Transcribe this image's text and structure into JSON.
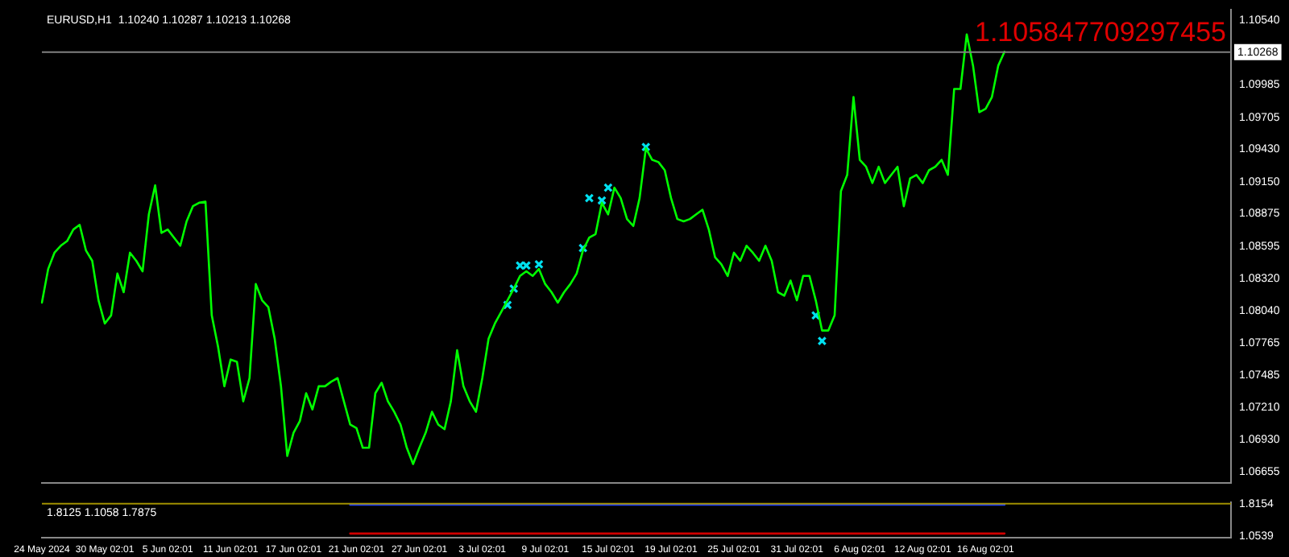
{
  "chart_data": [
    {
      "type": "line",
      "title": "EURUSD,H1  1.10240 1.10287 1.10213 1.10268",
      "annotations": [
        "1.105847709297455"
      ],
      "tick_labels": "y",
      "grid": false,
      "legend": false,
      "categories": [
        null,
        null,
        null,
        null,
        null,
        null,
        null,
        null,
        null,
        null,
        null,
        null,
        null,
        null,
        null,
        null,
        null,
        null,
        null,
        null,
        null,
        null,
        null,
        null,
        null,
        null,
        null,
        null,
        null,
        null,
        null,
        null,
        null,
        null,
        null,
        null,
        null,
        null,
        null,
        null,
        null,
        null,
        null,
        null,
        null,
        null,
        null,
        null,
        null,
        null,
        null,
        null,
        null,
        null,
        null,
        null,
        null,
        null,
        null,
        null,
        null,
        null,
        null,
        null,
        null,
        null,
        null,
        null,
        null,
        null,
        null,
        null,
        null,
        null,
        null,
        null,
        null,
        null,
        null,
        null,
        null,
        null,
        null,
        null,
        null,
        null,
        null,
        null,
        null,
        null,
        null,
        null,
        null,
        null,
        null,
        null,
        null,
        null,
        null,
        null,
        null,
        null,
        null,
        null,
        null,
        null,
        null,
        null,
        null,
        null,
        null,
        null,
        null,
        null,
        null,
        null,
        null,
        null,
        null,
        null,
        null,
        null,
        null,
        null,
        null,
        null,
        null,
        null,
        null,
        null,
        null,
        null,
        null,
        null,
        null,
        null,
        null,
        null,
        null,
        null,
        null,
        null,
        null,
        null,
        null,
        null,
        null,
        null,
        null,
        null,
        null,
        null,
        null,
        null,
        null,
        null,
        null,
        null,
        null,
        null,
        null,
        null,
        null,
        null,
        null,
        null,
        null,
        null,
        null,
        null,
        null,
        null,
        null,
        null,
        null,
        null,
        null,
        null,
        null,
        null,
        null,
        null,
        null,
        null,
        null,
        null,
        null,
        null,
        null,
        null
      ],
      "ylim": [
        1.0656,
        1.1063
      ],
      "yticks": [
        {
          "value": 1.1054,
          "label": "1.10540"
        },
        {
          "value": 1.09985,
          "label": "1.09985"
        },
        {
          "value": 1.09705,
          "label": "1.09705"
        },
        {
          "value": 1.0943,
          "label": "1.09430"
        },
        {
          "value": 1.0915,
          "label": "1.09150"
        },
        {
          "value": 1.08875,
          "label": "1.08875"
        },
        {
          "value": 1.08595,
          "label": "1.08595"
        },
        {
          "value": 1.0832,
          "label": "1.08320"
        },
        {
          "value": 1.0804,
          "label": "1.08040"
        },
        {
          "value": 1.07765,
          "label": "1.07765"
        },
        {
          "value": 1.07485,
          "label": "1.07485"
        },
        {
          "value": 1.0721,
          "label": "1.07210"
        },
        {
          "value": 1.0693,
          "label": "1.06930"
        },
        {
          "value": 1.06655,
          "label": "1.06655"
        }
      ],
      "ref_lines": [
        {
          "axis": "y",
          "value": 1.10268,
          "label": "1.10268",
          "color": "#808080"
        }
      ],
      "series": [
        {
          "type": "line",
          "color": "#00ff00",
          "values": [
            1.0811,
            1.084,
            1.0854,
            1.086,
            1.0864,
            1.0874,
            1.0878,
            1.0856,
            1.0847,
            1.0813,
            1.0793,
            1.08,
            1.0836,
            1.082,
            1.0854,
            1.0847,
            1.0838,
            1.0887,
            1.0912,
            1.0871,
            1.0874,
            1.0867,
            1.086,
            1.0881,
            1.0894,
            1.0897,
            1.0898,
            1.08,
            1.0773,
            1.0739,
            1.0762,
            1.076,
            1.0726,
            1.0746,
            1.0827,
            1.0813,
            1.0807,
            1.078,
            1.0739,
            1.0679,
            1.0699,
            1.0709,
            1.0733,
            1.0719,
            1.0739,
            1.0739,
            1.0743,
            1.0746,
            1.0726,
            1.0706,
            1.0703,
            1.0686,
            1.0686,
            1.0733,
            1.0742,
            1.0726,
            1.0717,
            1.0706,
            1.0686,
            1.0672,
            1.0686,
            1.0699,
            1.0717,
            1.0706,
            1.0702,
            1.0726,
            1.077,
            1.0739,
            1.0726,
            1.0717,
            1.0746,
            1.078,
            1.0793,
            1.0803,
            1.0813,
            1.0823,
            1.0834,
            1.0838,
            1.0834,
            1.084,
            1.0827,
            1.082,
            1.0811,
            1.082,
            1.0827,
            1.0836,
            1.0856,
            1.0867,
            1.087,
            1.0897,
            1.0887,
            1.091,
            1.0901,
            1.0883,
            1.0877,
            1.0901,
            1.0944,
            1.0934,
            1.0932,
            1.0925,
            1.0901,
            1.0883,
            1.0881,
            1.0883,
            1.0887,
            1.0891,
            1.0874,
            1.085,
            1.0844,
            1.0834,
            1.0854,
            1.0847,
            1.086,
            1.0854,
            1.0847,
            1.086,
            1.0847,
            1.082,
            1.0817,
            1.083,
            1.0813,
            1.0834,
            1.0834,
            1.0813,
            1.0787,
            1.0787,
            1.08,
            1.0907,
            1.0921,
            1.0988,
            1.0934,
            1.0928,
            1.0914,
            1.0928,
            1.0914,
            1.0921,
            1.0928,
            1.0894,
            1.0918,
            1.0921,
            1.0914,
            1.0925,
            1.0928,
            1.0934,
            1.0921,
            1.0995,
            1.0995,
            1.1042,
            1.1015,
            1.0975,
            1.0978,
            1.0988,
            1.1015,
            1.1027,
            null,
            null,
            null,
            null,
            null,
            null,
            null,
            null,
            null,
            null,
            null,
            null,
            null,
            null,
            null,
            null,
            null,
            null,
            null,
            null,
            null,
            null,
            null,
            null,
            null,
            null,
            null,
            null,
            null,
            null,
            null,
            null,
            null,
            null,
            null,
            null
          ]
        },
        {
          "type": "scatter",
          "marker": "cross",
          "color": "#00e0f0",
          "values": [
            null,
            null,
            null,
            null,
            null,
            null,
            null,
            null,
            null,
            null,
            null,
            null,
            null,
            null,
            null,
            null,
            null,
            null,
            null,
            null,
            null,
            null,
            null,
            null,
            null,
            null,
            null,
            null,
            null,
            null,
            null,
            null,
            null,
            null,
            null,
            null,
            null,
            null,
            null,
            null,
            null,
            null,
            null,
            null,
            null,
            null,
            null,
            null,
            null,
            null,
            null,
            null,
            null,
            null,
            null,
            null,
            null,
            null,
            null,
            null,
            null,
            null,
            null,
            null,
            null,
            null,
            null,
            null,
            null,
            null,
            null,
            null,
            null,
            null,
            1.0809,
            1.0823,
            1.0843,
            1.0843,
            null,
            1.0844,
            null,
            null,
            null,
            null,
            null,
            null,
            1.0858,
            1.0901,
            null,
            1.0899,
            1.091,
            null,
            null,
            null,
            null,
            null,
            1.0945,
            null,
            null,
            null,
            null,
            null,
            null,
            null,
            null,
            null,
            null,
            null,
            null,
            null,
            null,
            null,
            null,
            null,
            null,
            null,
            null,
            null,
            null,
            null,
            null,
            null,
            null,
            1.08,
            1.0778,
            null,
            null,
            null,
            null,
            null,
            null,
            null,
            null,
            null,
            null,
            null,
            null,
            null,
            null,
            null,
            null,
            null,
            null,
            null,
            null,
            null,
            null,
            null,
            null,
            null,
            null,
            null,
            null,
            null,
            null,
            null,
            null,
            null,
            null,
            null,
            null,
            null,
            null,
            null,
            null,
            null,
            null,
            null,
            null,
            null,
            null,
            null,
            null,
            null,
            null,
            null,
            null,
            null,
            null,
            null,
            null,
            null,
            null,
            null,
            null,
            null,
            null,
            null,
            null,
            null
          ]
        }
      ]
    },
    {
      "type": "line",
      "title": "1.8125 1.1058 1.7875",
      "grid": false,
      "legend": false,
      "categories": [
        "24 May 2024",
        null,
        null,
        null,
        null,
        null,
        null,
        null,
        null,
        null,
        "30 May 02:01",
        null,
        null,
        null,
        null,
        null,
        null,
        null,
        null,
        null,
        "5 Jun 02:01",
        null,
        null,
        null,
        null,
        null,
        null,
        null,
        null,
        null,
        "11 Jun 02:01",
        null,
        null,
        null,
        null,
        null,
        null,
        null,
        null,
        null,
        "17 Jun 02:01",
        null,
        null,
        null,
        null,
        null,
        null,
        null,
        null,
        null,
        "21 Jun 02:01",
        null,
        null,
        null,
        null,
        null,
        null,
        null,
        null,
        null,
        "27 Jun 02:01",
        null,
        null,
        null,
        null,
        null,
        null,
        null,
        null,
        null,
        "3 Jul 02:01",
        null,
        null,
        null,
        null,
        null,
        null,
        null,
        null,
        null,
        "9 Jul 02:01",
        null,
        null,
        null,
        null,
        null,
        null,
        null,
        null,
        null,
        "15 Jul 02:01",
        null,
        null,
        null,
        null,
        null,
        null,
        null,
        null,
        null,
        "19 Jul 02:01",
        null,
        null,
        null,
        null,
        null,
        null,
        null,
        null,
        null,
        "25 Jul 02:01",
        null,
        null,
        null,
        null,
        null,
        null,
        null,
        null,
        null,
        "31 Jul 02:01",
        null,
        null,
        null,
        null,
        null,
        null,
        null,
        null,
        null,
        "6 Aug 02:01",
        null,
        null,
        null,
        null,
        null,
        null,
        null,
        null,
        null,
        "12 Aug 02:01",
        null,
        null,
        null,
        null,
        null,
        null,
        null,
        null,
        null,
        "16 Aug 02:01",
        null,
        null,
        null,
        null,
        null,
        null,
        null,
        null,
        null,
        null,
        null,
        null,
        null,
        null,
        null,
        null,
        null,
        null,
        null,
        null,
        null,
        null,
        null,
        null,
        null,
        null,
        null,
        null,
        null,
        null,
        null,
        null,
        null,
        null,
        null,
        null,
        null,
        null,
        null
      ],
      "ylim": [
        1.02,
        1.84
      ],
      "yticks": [
        1.8154,
        1.0539
      ],
      "ref_lines": [
        {
          "axis": "y",
          "value": 1.8154,
          "color": "#a09000"
        }
      ],
      "series": [
        {
          "type": "line",
          "color": "#2040ff",
          "values": [
            null,
            null,
            null,
            null,
            null,
            null,
            null,
            null,
            null,
            null,
            null,
            null,
            null,
            null,
            null,
            null,
            null,
            null,
            null,
            null,
            null,
            null,
            null,
            null,
            null,
            null,
            null,
            null,
            null,
            null,
            null,
            null,
            null,
            null,
            null,
            null,
            null,
            null,
            null,
            null,
            null,
            null,
            null,
            null,
            null,
            null,
            null,
            null,
            null,
            1.79,
            1.79,
            1.79,
            1.79,
            1.79,
            1.79,
            1.79,
            1.79,
            1.79,
            1.79,
            1.79,
            1.79,
            1.79,
            1.79,
            1.79,
            1.79,
            1.79,
            1.79,
            1.79,
            1.79,
            1.79,
            1.79,
            1.79,
            1.79,
            1.79,
            1.79,
            1.79,
            1.79,
            1.79,
            1.79,
            1.79,
            1.79,
            1.79,
            1.79,
            1.79,
            1.79,
            1.79,
            1.79,
            1.79,
            1.79,
            1.79,
            1.79,
            1.79,
            1.79,
            1.79,
            1.79,
            1.79,
            1.79,
            1.79,
            1.79,
            1.79,
            1.79,
            1.79,
            1.79,
            1.79,
            1.79,
            1.79,
            1.79,
            1.79,
            1.79,
            1.79,
            1.79,
            1.79,
            1.79,
            1.79,
            1.79,
            1.79,
            1.79,
            1.79,
            1.79,
            1.79,
            1.79,
            1.79,
            1.79,
            1.79,
            1.79,
            1.79,
            1.79,
            1.79,
            1.79,
            1.79,
            1.79,
            1.79,
            1.79,
            1.79,
            1.79,
            1.79,
            1.79,
            1.79,
            1.79,
            1.79,
            1.79,
            1.79,
            1.79,
            1.79,
            1.79,
            1.79,
            1.79,
            1.79,
            1.79,
            1.79,
            1.79,
            1.79,
            1.79,
            1.79,
            null,
            null,
            null,
            null,
            null,
            null,
            null,
            null,
            null,
            null,
            null,
            null,
            null,
            null,
            null,
            null,
            null,
            null,
            null,
            null,
            null,
            null,
            null,
            null,
            null,
            null,
            null,
            null,
            null,
            null,
            null,
            null,
            null,
            null,
            null,
            null
          ]
        },
        {
          "type": "line",
          "color": "#d00000",
          "values": [
            null,
            null,
            null,
            null,
            null,
            null,
            null,
            null,
            null,
            null,
            null,
            null,
            null,
            null,
            null,
            null,
            null,
            null,
            null,
            null,
            null,
            null,
            null,
            null,
            null,
            null,
            null,
            null,
            null,
            null,
            null,
            null,
            null,
            null,
            null,
            null,
            null,
            null,
            null,
            null,
            null,
            null,
            null,
            null,
            null,
            null,
            null,
            null,
            null,
            1.11,
            1.11,
            1.11,
            1.11,
            1.11,
            1.11,
            1.11,
            1.11,
            1.11,
            1.11,
            1.11,
            1.11,
            1.11,
            1.11,
            1.11,
            1.11,
            1.11,
            1.11,
            1.11,
            1.11,
            1.11,
            1.11,
            1.11,
            1.11,
            1.11,
            1.11,
            1.11,
            1.11,
            1.11,
            1.11,
            1.11,
            1.11,
            1.11,
            1.11,
            1.11,
            1.11,
            1.11,
            1.11,
            1.11,
            1.11,
            1.11,
            1.11,
            1.11,
            1.11,
            1.11,
            1.11,
            1.11,
            1.11,
            1.11,
            1.11,
            1.11,
            1.11,
            1.11,
            1.11,
            1.11,
            1.11,
            1.11,
            1.11,
            1.11,
            1.11,
            1.11,
            1.11,
            1.11,
            1.11,
            1.11,
            1.11,
            1.11,
            1.11,
            1.11,
            1.11,
            1.11,
            1.11,
            1.11,
            1.11,
            1.11,
            1.11,
            1.11,
            1.11,
            1.11,
            1.11,
            1.11,
            1.11,
            1.11,
            1.11,
            1.11,
            1.11,
            1.11,
            1.11,
            1.11,
            1.11,
            1.11,
            1.11,
            1.11,
            1.11,
            1.11,
            1.11,
            1.11,
            1.11,
            1.11,
            1.11,
            1.11,
            1.11,
            1.11,
            1.11,
            1.11,
            null,
            null,
            null,
            null,
            null,
            null,
            null,
            null,
            null,
            null,
            null,
            null,
            null,
            null,
            null,
            null,
            null,
            null,
            null,
            null,
            null,
            null,
            null,
            null,
            null,
            null,
            null,
            null,
            null,
            null,
            null,
            null,
            null,
            null,
            null,
            null
          ]
        }
      ]
    }
  ]
}
